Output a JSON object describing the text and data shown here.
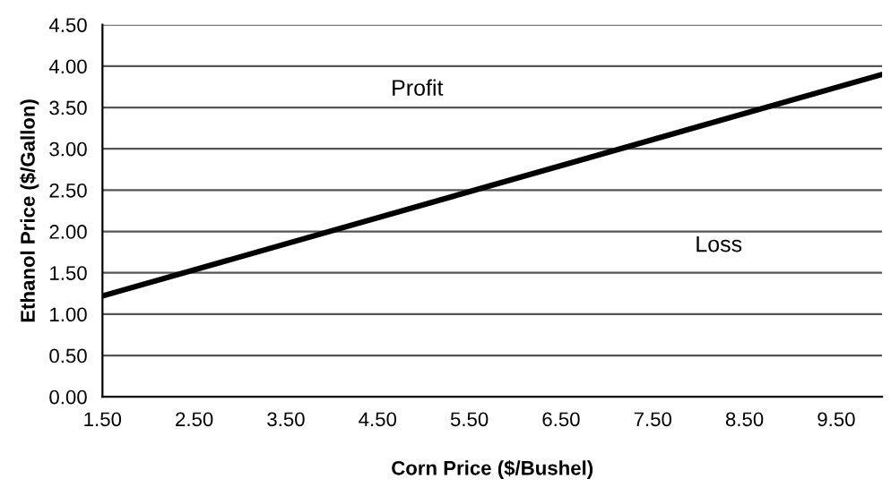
{
  "chart_data": {
    "type": "line",
    "xlabel": "Corn Price ($/Bushel)",
    "ylabel": "Ethanol Price ($/Gallon)",
    "x": [
      1.5,
      10.0
    ],
    "series": [
      {
        "color": "#000000",
        "values": [
          1.22,
          3.9
        ]
      }
    ],
    "xlim": [
      1.5,
      10.0
    ],
    "xticks": [
      {
        "value": 1.5,
        "label": "1.50"
      },
      {
        "value": 2.5,
        "label": "2.50"
      },
      {
        "value": 3.5,
        "label": "3.50"
      },
      {
        "value": 4.5,
        "label": "4.50"
      },
      {
        "value": 5.5,
        "label": "5.50"
      },
      {
        "value": 6.5,
        "label": "6.50"
      },
      {
        "value": 7.5,
        "label": "7.50"
      },
      {
        "value": 8.5,
        "label": "8.50"
      },
      {
        "value": 9.5,
        "label": "9.50"
      }
    ],
    "ylim": [
      0,
      4.5
    ],
    "yticks": [
      {
        "value": 0,
        "label": "0.00"
      },
      {
        "value": 0.5,
        "label": "0.50"
      },
      {
        "value": 1.0,
        "label": "1.00"
      },
      {
        "value": 1.5,
        "label": "1.50"
      },
      {
        "value": 2.0,
        "label": "2.00"
      },
      {
        "value": 2.5,
        "label": "2.50"
      },
      {
        "value": 3.0,
        "label": "3.00"
      },
      {
        "value": 3.5,
        "label": "3.50"
      },
      {
        "value": 4.0,
        "label": "4.00"
      },
      {
        "value": 4.5,
        "label": "4.50"
      }
    ],
    "grid": "y",
    "marker": "none",
    "line_style": "solid",
    "annotations": [
      "Profit",
      "Loss"
    ]
  }
}
